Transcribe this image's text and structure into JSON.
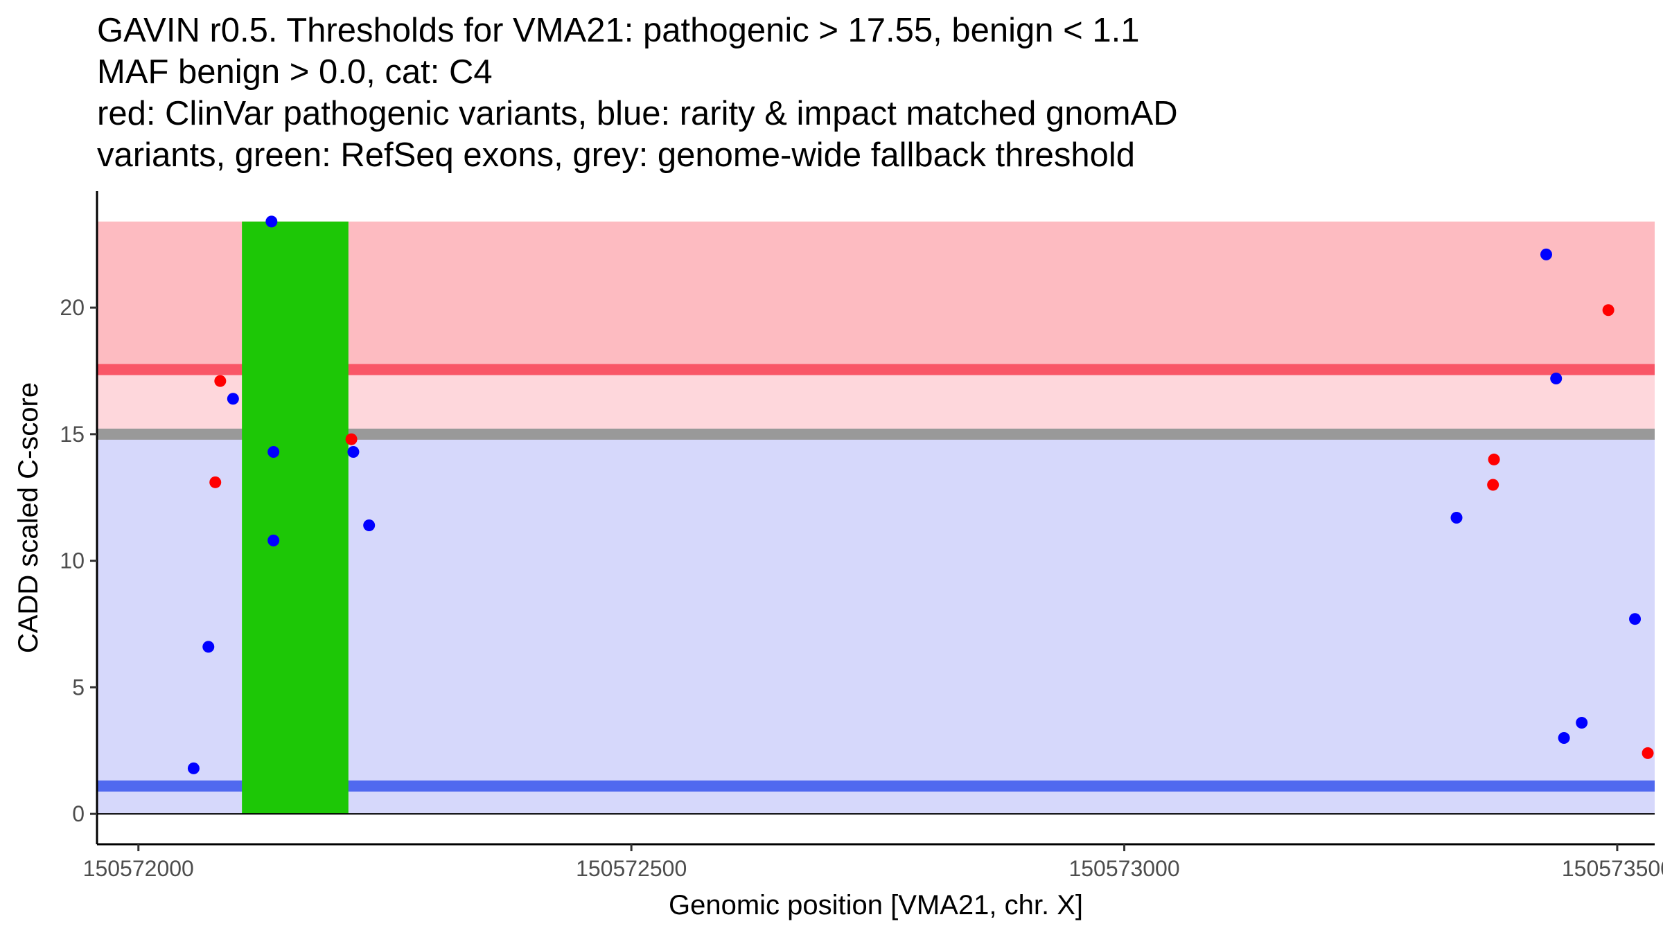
{
  "title": {
    "line1": "GAVIN r0.5. Thresholds for VMA21: pathogenic > 17.55, benign < 1.1",
    "line2": "MAF benign > 0.0, cat: C4",
    "line3": "red: ClinVar pathogenic variants, blue: rarity & impact matched gnomAD",
    "line4": "variants, green: RefSeq exons, grey: genome-wide fallback threshold"
  },
  "chart_data": {
    "type": "scatter",
    "xlabel": "Genomic position [VMA21, chr. X]",
    "ylabel": "CADD scaled C-score",
    "xlim": [
      150571958,
      150573538
    ],
    "ylim": [
      -1.2,
      24.6
    ],
    "x_ticks": [
      {
        "value": 150572000,
        "label": "150572000"
      },
      {
        "value": 150572500,
        "label": "150572500"
      },
      {
        "value": 150573000,
        "label": "150573000"
      },
      {
        "value": 150573500,
        "label": "150573500"
      }
    ],
    "y_ticks": [
      {
        "value": 0,
        "label": "0"
      },
      {
        "value": 5,
        "label": "5"
      },
      {
        "value": 10,
        "label": "10"
      },
      {
        "value": 15,
        "label": "15"
      },
      {
        "value": 20,
        "label": "20"
      }
    ],
    "regions": [
      {
        "name": "pathogenic-region",
        "y0": 17.55,
        "y1": 23.4,
        "color": "#fdbbc1"
      },
      {
        "name": "intermediate-region",
        "y0": 15.0,
        "y1": 17.55,
        "color": "#fed7dc"
      },
      {
        "name": "benign-region",
        "y0": 0,
        "y1": 15.0,
        "color": "#d6d8fb"
      }
    ],
    "threshold_lines": [
      {
        "name": "pathogenic-threshold",
        "value": 17.55,
        "color": "#f95667"
      },
      {
        "name": "fallback-threshold",
        "value": 15.0,
        "color": "#999999"
      },
      {
        "name": "benign-threshold",
        "value": 1.1,
        "color": "#5069ef"
      }
    ],
    "exons": [
      {
        "start": 150572105,
        "end": 150572213,
        "y0": 0,
        "y1": 23.4,
        "color": "#1dc706"
      }
    ],
    "series": [
      {
        "name": "ClinVar pathogenic",
        "color": "#ff0000",
        "points": [
          {
            "x": 150572083,
            "y": 17.1
          },
          {
            "x": 150572078,
            "y": 13.1
          },
          {
            "x": 150572216,
            "y": 14.8
          },
          {
            "x": 150573375,
            "y": 14.0
          },
          {
            "x": 150573374,
            "y": 13.0
          },
          {
            "x": 150573491,
            "y": 19.9
          },
          {
            "x": 150573531,
            "y": 2.4
          }
        ]
      },
      {
        "name": "gnomAD matched",
        "color": "#0000ff",
        "points": [
          {
            "x": 150572135,
            "y": 23.4
          },
          {
            "x": 150572096,
            "y": 16.4
          },
          {
            "x": 150572137,
            "y": 14.3
          },
          {
            "x": 150572218,
            "y": 14.3
          },
          {
            "x": 150572137,
            "y": 10.8
          },
          {
            "x": 150572234,
            "y": 11.4
          },
          {
            "x": 150572071,
            "y": 6.6
          },
          {
            "x": 150572056,
            "y": 1.8
          },
          {
            "x": 150573337,
            "y": 11.7
          },
          {
            "x": 150573428,
            "y": 22.1
          },
          {
            "x": 150573438,
            "y": 17.2
          },
          {
            "x": 150573446,
            "y": 3.0
          },
          {
            "x": 150573464,
            "y": 3.6
          },
          {
            "x": 150573518,
            "y": 7.7
          }
        ]
      }
    ]
  }
}
